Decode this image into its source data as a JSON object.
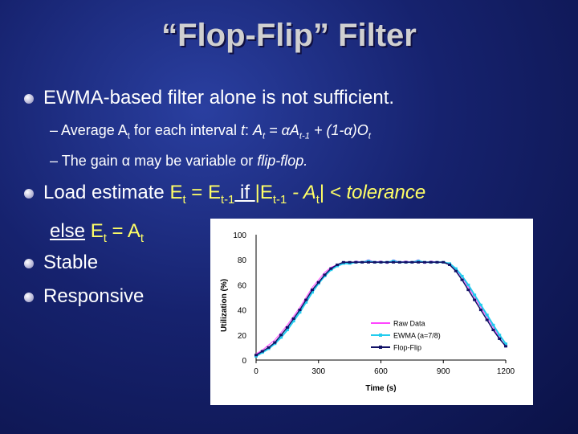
{
  "slide": {
    "title": "“Flop-Flip” Filter",
    "bullet1": "EWMA-based filter alone is not sufficient.",
    "sub1": {
      "dash": "–",
      "text": "Average A",
      "t_sub": "t",
      "mid": " for each interval ",
      "t_it": "t",
      "colon": ": ",
      "formula_A": "A",
      "formula_t": "t",
      "eq": " = ",
      "alpha": "α",
      "A2": "A",
      "t1": "t-1",
      "plus": " + (1-",
      "alpha2": "α",
      "paren": ")O",
      "t3": "t"
    },
    "sub2": {
      "dash": "–",
      "pre": "The gain ",
      "alpha": "α",
      "mid": " may be variable or ",
      "italic": "flip-flop."
    },
    "bullet2": {
      "pre": "Load estimate ",
      "E": "E",
      "t": "t",
      "eq": " = ",
      "E2": "E",
      "t1": "t-1",
      "if": " if ",
      "bar1": "|",
      "E3": "E",
      "t2": "t-1",
      "minus": " - A",
      "t3": "t",
      "bar2": "|",
      "tol": " < tolerance"
    },
    "else_line": {
      "else": "else",
      "E": " E",
      "t": "t",
      "eq": " = A",
      "t2": "t"
    },
    "bullet3": "Stable",
    "bullet4": "Responsive"
  },
  "chart_data": {
    "type": "line",
    "xlabel": "Time (s)",
    "ylabel": "Utilization (%)",
    "xlim": [
      0,
      1200
    ],
    "ylim": [
      0,
      100
    ],
    "xticks": [
      "0",
      "300",
      "600",
      "900",
      "1200"
    ],
    "yticks": [
      "0",
      "20",
      "40",
      "60",
      "80",
      "100"
    ],
    "legend_position": "bottom-right",
    "series": [
      {
        "name": "Raw Data",
        "color": "#ff44ff",
        "x": [
          0,
          30,
          60,
          90,
          120,
          150,
          180,
          210,
          240,
          270,
          300,
          330,
          360,
          390,
          420,
          450,
          480,
          510,
          540,
          570,
          600,
          630,
          660,
          690,
          720,
          750,
          780,
          810,
          840,
          870,
          900,
          930,
          960,
          990,
          1020,
          1050,
          1080,
          1110,
          1140,
          1170,
          1200
        ],
        "values": [
          5,
          8,
          12,
          16,
          22,
          28,
          35,
          42,
          50,
          58,
          64,
          70,
          74,
          76,
          78,
          77,
          79,
          78,
          80,
          78,
          79,
          77,
          80,
          78,
          79,
          78,
          80,
          77,
          79,
          78,
          78,
          76,
          72,
          66,
          58,
          50,
          42,
          34,
          26,
          18,
          10
        ]
      },
      {
        "name": "EWMA (a=7/8)",
        "color": "#22ccee",
        "x": [
          0,
          30,
          60,
          90,
          120,
          150,
          180,
          210,
          240,
          270,
          300,
          330,
          360,
          390,
          420,
          450,
          480,
          510,
          540,
          570,
          600,
          630,
          660,
          690,
          720,
          750,
          780,
          810,
          840,
          870,
          900,
          930,
          960,
          990,
          1020,
          1050,
          1080,
          1110,
          1140,
          1170,
          1200
        ],
        "values": [
          3,
          6,
          9,
          13,
          18,
          24,
          31,
          38,
          46,
          54,
          61,
          67,
          72,
          75,
          77,
          77,
          78,
          78,
          79,
          78,
          78,
          78,
          79,
          78,
          78,
          78,
          79,
          78,
          78,
          78,
          78,
          77,
          73,
          67,
          60,
          52,
          44,
          36,
          28,
          20,
          13
        ]
      },
      {
        "name": "Flop-Flip",
        "color": "#111166",
        "x": [
          0,
          30,
          60,
          90,
          120,
          150,
          180,
          210,
          240,
          270,
          300,
          330,
          360,
          390,
          420,
          450,
          480,
          510,
          540,
          570,
          600,
          630,
          660,
          690,
          720,
          750,
          780,
          810,
          840,
          870,
          900,
          930,
          960,
          990,
          1020,
          1050,
          1080,
          1110,
          1140,
          1170,
          1200
        ],
        "values": [
          4,
          7,
          10,
          14,
          20,
          26,
          33,
          40,
          48,
          56,
          62,
          68,
          73,
          76,
          78,
          78,
          78,
          78,
          78,
          78,
          78,
          78,
          78,
          78,
          78,
          78,
          78,
          78,
          78,
          78,
          78,
          76,
          71,
          64,
          56,
          48,
          40,
          32,
          24,
          17,
          11
        ]
      }
    ]
  }
}
